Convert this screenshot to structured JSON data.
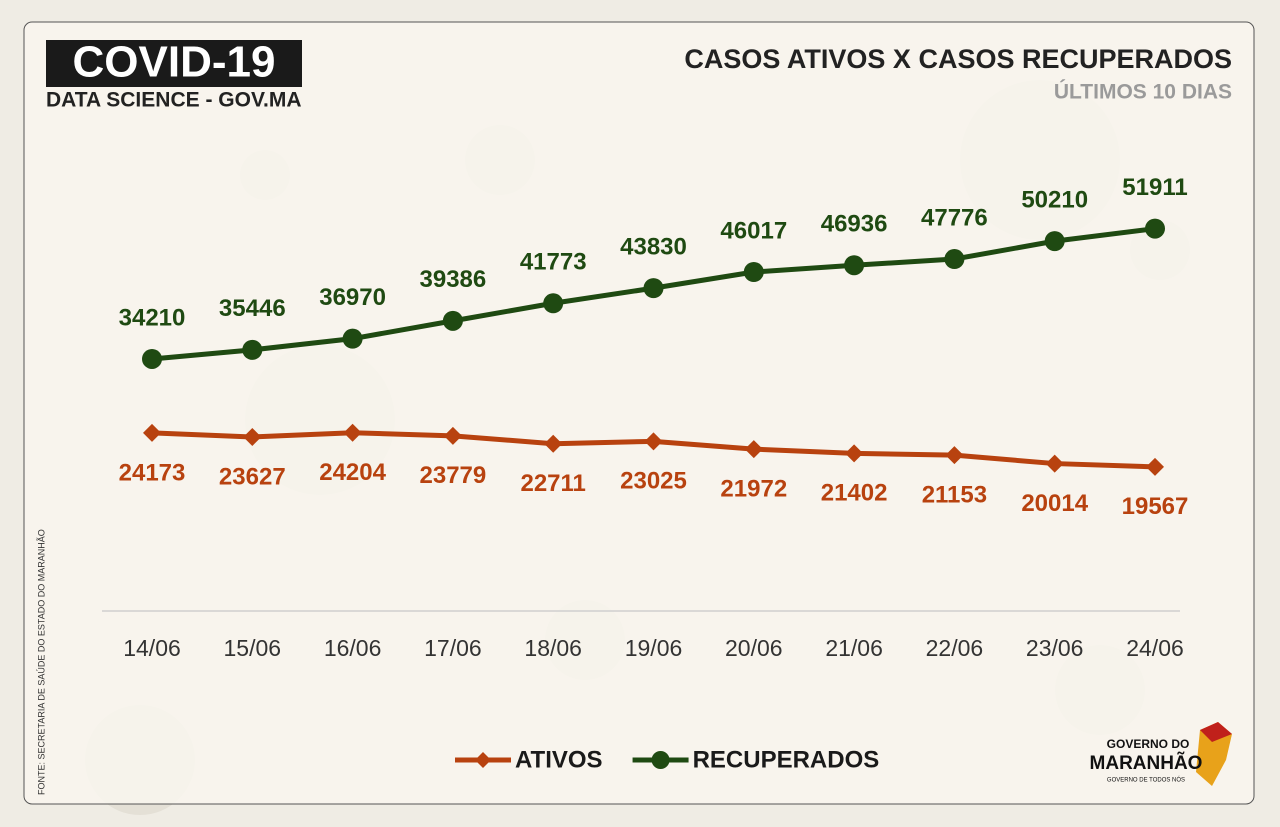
{
  "header": {
    "brand": "COVID-19",
    "subtitle": "DATA SCIENCE - GOV.MA"
  },
  "source": "FONTE: SECRETARIA DE SAÚDE DO ESTADO DO MARANHÃO",
  "logo": {
    "line1": "GOVERNO DO",
    "line2": "MARANHÃO",
    "line3": "GOVERNO DE TODOS NÓS"
  },
  "chart_data": {
    "type": "line",
    "title": "CASOS ATIVOS X CASOS RECUPERADOS",
    "subtitle": "ÚLTIMOS 10 DIAS",
    "categories": [
      "14/06",
      "15/06",
      "16/06",
      "17/06",
      "18/06",
      "19/06",
      "20/06",
      "21/06",
      "22/06",
      "23/06",
      "24/06"
    ],
    "series": [
      {
        "name": "ATIVOS",
        "color": "#b8420f",
        "marker": "diamond",
        "label_position": "below",
        "values": [
          24173,
          23627,
          24204,
          23779,
          22711,
          23025,
          21972,
          21402,
          21153,
          20014,
          19567
        ]
      },
      {
        "name": "RECUPERADOS",
        "color": "#1f4a12",
        "marker": "circle",
        "label_position": "above",
        "values": [
          34210,
          35446,
          36970,
          39386,
          41773,
          43830,
          46017,
          46936,
          47776,
          50210,
          51911
        ]
      }
    ],
    "ylim": [
      0,
      60000
    ],
    "legend": "bottom"
  }
}
